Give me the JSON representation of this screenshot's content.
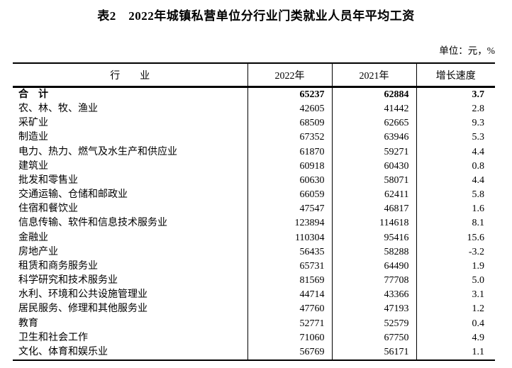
{
  "page": {
    "title": "表2　2022年城镇私营单位分行业门类就业人员年平均工资",
    "unit_note": "单位：元，%"
  },
  "table": {
    "headers": {
      "industry": "行　　业",
      "year_2022": "2022年",
      "year_2021": "2021年",
      "growth": "增长速度"
    },
    "rows": [
      {
        "industry": "合　计",
        "y2022": "65237",
        "y2021": "62884",
        "growth": "3.7",
        "bold": true
      },
      {
        "industry": "农、林、牧、渔业",
        "y2022": "42605",
        "y2021": "41442",
        "growth": "2.8",
        "bold": false
      },
      {
        "industry": "采矿业",
        "y2022": "68509",
        "y2021": "62665",
        "growth": "9.3",
        "bold": false
      },
      {
        "industry": "制造业",
        "y2022": "67352",
        "y2021": "63946",
        "growth": "5.3",
        "bold": false
      },
      {
        "industry": "电力、热力、燃气及水生产和供应业",
        "y2022": "61870",
        "y2021": "59271",
        "growth": "4.4",
        "bold": false
      },
      {
        "industry": "建筑业",
        "y2022": "60918",
        "y2021": "60430",
        "growth": "0.8",
        "bold": false
      },
      {
        "industry": "批发和零售业",
        "y2022": "60630",
        "y2021": "58071",
        "growth": "4.4",
        "bold": false
      },
      {
        "industry": "交通运输、仓储和邮政业",
        "y2022": "66059",
        "y2021": "62411",
        "growth": "5.8",
        "bold": false
      },
      {
        "industry": "住宿和餐饮业",
        "y2022": "47547",
        "y2021": "46817",
        "growth": "1.6",
        "bold": false
      },
      {
        "industry": "信息传输、软件和信息技术服务业",
        "y2022": "123894",
        "y2021": "114618",
        "growth": "8.1",
        "bold": false
      },
      {
        "industry": "金融业",
        "y2022": "110304",
        "y2021": "95416",
        "growth": "15.6",
        "bold": false
      },
      {
        "industry": "房地产业",
        "y2022": "56435",
        "y2021": "58288",
        "growth": "-3.2",
        "bold": false
      },
      {
        "industry": "租赁和商务服务业",
        "y2022": "65731",
        "y2021": "64490",
        "growth": "1.9",
        "bold": false
      },
      {
        "industry": "科学研究和技术服务业",
        "y2022": "81569",
        "y2021": "77708",
        "growth": "5.0",
        "bold": false
      },
      {
        "industry": "水利、环境和公共设施管理业",
        "y2022": "44714",
        "y2021": "43366",
        "growth": "3.1",
        "bold": false
      },
      {
        "industry": "居民服务、修理和其他服务业",
        "y2022": "47760",
        "y2021": "47193",
        "growth": "1.2",
        "bold": false
      },
      {
        "industry": "教育",
        "y2022": "52771",
        "y2021": "52579",
        "growth": "0.4",
        "bold": false
      },
      {
        "industry": "卫生和社会工作",
        "y2022": "71060",
        "y2021": "67750",
        "growth": "4.9",
        "bold": false
      },
      {
        "industry": "文化、体育和娱乐业",
        "y2022": "56769",
        "y2021": "56171",
        "growth": "1.1",
        "bold": false
      }
    ]
  },
  "colors": {
    "text": "#000000",
    "border": "#000000",
    "background": "#ffffff"
  }
}
